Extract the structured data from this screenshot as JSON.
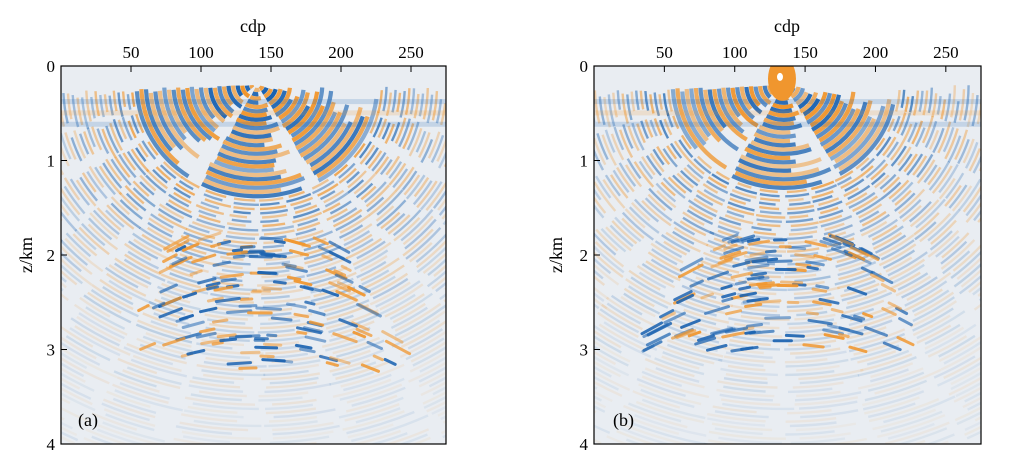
{
  "colors": {
    "background": "#ffffff",
    "panel_background": "#e9edf2",
    "positive": "#f0962e",
    "negative": "#1a62b0",
    "axis": "#000000"
  },
  "chart_data": [
    {
      "type": "heatmap",
      "panel_label": "(a)",
      "xlabel": "cdp",
      "ylabel": "z/km",
      "xlim": [
        0,
        275
      ],
      "ylim": [
        0,
        4
      ],
      "x_axis_position": "top",
      "y_axis_inverted": true,
      "x_ticks": [
        50,
        100,
        150,
        200,
        250
      ],
      "y_ticks": [
        0,
        1,
        2,
        3,
        4
      ],
      "colormap": [
        "#1a62b0",
        "#e9edf2",
        "#f0962e"
      ],
      "features": {
        "arc_apex_cdp": 140,
        "arc_apex_z": 0.2,
        "arc_spacing_km": 0.09,
        "strong_zone_z": [
          0,
          1.4
        ],
        "noisy_zone_z": [
          1.8,
          3.2
        ],
        "center_blob": false
      }
    },
    {
      "type": "heatmap",
      "panel_label": "(b)",
      "xlabel": "cdp",
      "ylabel": "z/km",
      "xlim": [
        0,
        275
      ],
      "ylim": [
        0,
        4
      ],
      "x_axis_position": "top",
      "y_axis_inverted": true,
      "x_ticks": [
        50,
        100,
        150,
        200,
        250
      ],
      "y_ticks": [
        0,
        1,
        2,
        3,
        4
      ],
      "colormap": [
        "#1a62b0",
        "#e9edf2",
        "#f0962e"
      ],
      "features": {
        "arc_apex_cdp": 135,
        "arc_apex_z": 0.2,
        "arc_spacing_km": 0.09,
        "strong_zone_z": [
          0,
          1.3
        ],
        "noisy_zone_z": [
          1.8,
          3.0
        ],
        "center_blob": true
      }
    }
  ]
}
